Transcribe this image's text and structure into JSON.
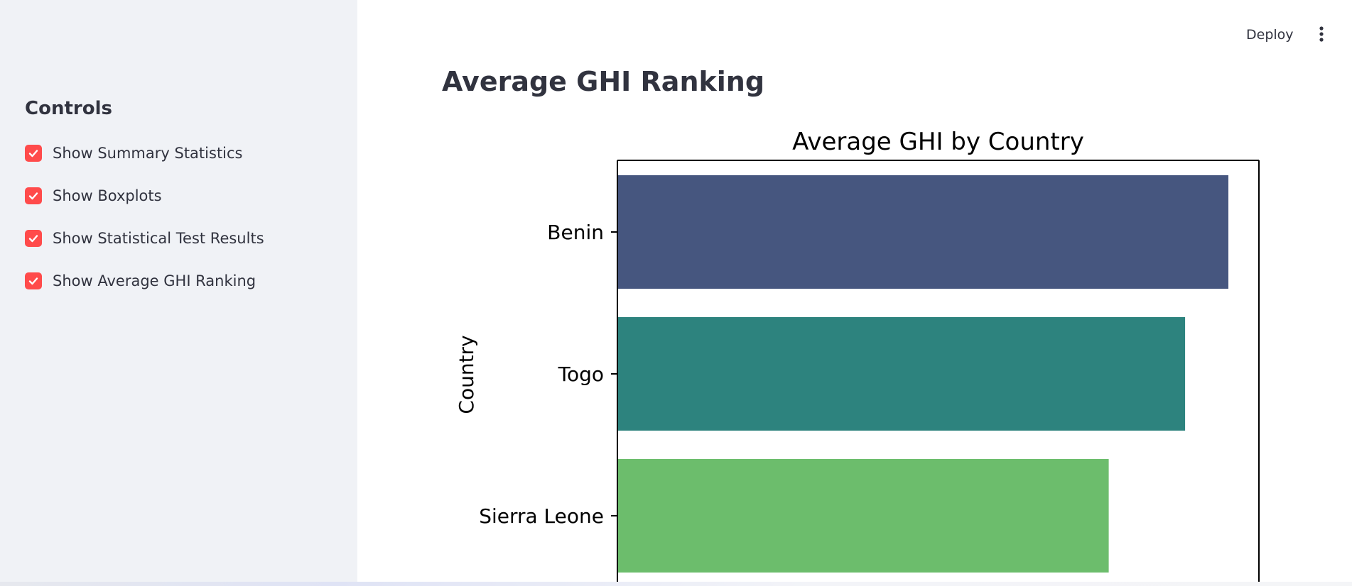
{
  "header": {
    "deploy_label": "Deploy",
    "menu_icon": "kebab-menu-icon"
  },
  "sidebar": {
    "title": "Controls",
    "checkbox_color": "#ff4b4b",
    "checkboxes": [
      {
        "label": "Show Summary Statistics",
        "checked": true
      },
      {
        "label": "Show Boxplots",
        "checked": true
      },
      {
        "label": "Show Statistical Test Results",
        "checked": true
      },
      {
        "label": "Show Average GHI Ranking",
        "checked": true
      }
    ]
  },
  "main": {
    "title": "Average GHI Ranking"
  },
  "chart_data": {
    "type": "bar",
    "orientation": "horizontal",
    "title": "Average GHI by Country",
    "ylabel": "Country",
    "categories": [
      "Benin",
      "Togo",
      "Sierra Leone"
    ],
    "values": [
      240,
      223,
      193
    ],
    "colors": [
      "#46567f",
      "#2d837e",
      "#6cbd6c"
    ],
    "xlim": [
      0,
      252
    ]
  }
}
